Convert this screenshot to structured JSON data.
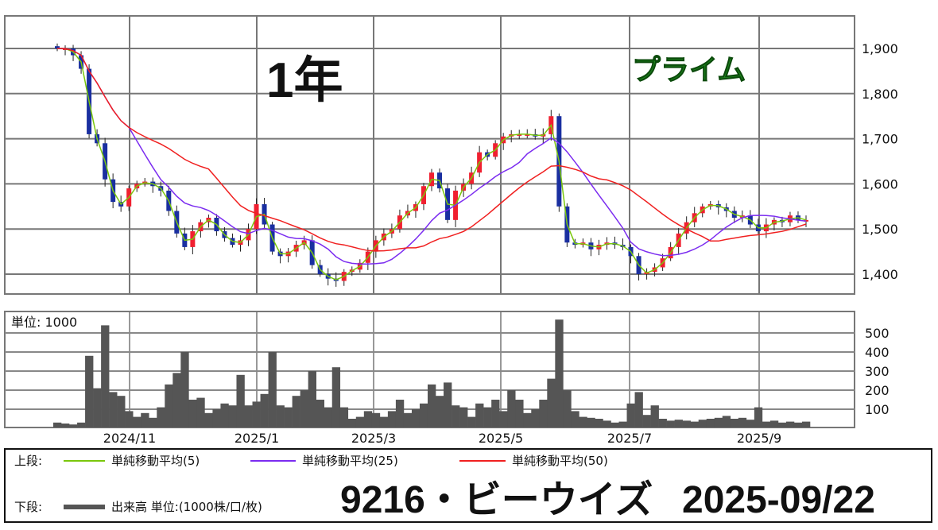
{
  "chart_data": [
    {
      "type": "candlestick",
      "title": "1年",
      "market_badge": "プライム",
      "ylim": [
        1370,
        1970
      ],
      "y_ticks": [
        1400,
        1500,
        1600,
        1700,
        1800,
        1900
      ],
      "y_tick_labels": [
        "1,400",
        "1,500",
        "1,600",
        "1,700",
        "1,800",
        "1,900"
      ],
      "x_tick_labels": [
        "2024/11",
        "2025/1",
        "2025/3",
        "2025/5",
        "2025/7",
        "2025/9"
      ],
      "grid": true,
      "close": [
        1900,
        1900,
        1885,
        1855,
        1710,
        1690,
        1610,
        1560,
        1550,
        1590,
        1600,
        1605,
        1595,
        1585,
        1540,
        1490,
        1460,
        1495,
        1515,
        1525,
        1495,
        1480,
        1465,
        1475,
        1500,
        1555,
        1510,
        1450,
        1440,
        1450,
        1465,
        1475,
        1420,
        1400,
        1390,
        1385,
        1405,
        1410,
        1425,
        1450,
        1475,
        1490,
        1500,
        1530,
        1540,
        1555,
        1595,
        1625,
        1590,
        1520,
        1585,
        1600,
        1625,
        1670,
        1660,
        1690,
        1705,
        1710,
        1710,
        1710,
        1705,
        1710,
        1750,
        1550,
        1470,
        1465,
        1470,
        1455,
        1465,
        1470,
        1465,
        1460,
        1440,
        1400,
        1405,
        1415,
        1435,
        1460,
        1490,
        1515,
        1535,
        1550,
        1555,
        1548,
        1540,
        1525,
        1530,
        1510,
        1495,
        1510,
        1520,
        1515,
        1530,
        1520,
        1520
      ],
      "series": [
        {
          "name": "単純移動平均(5)",
          "color": "#7ac70c"
        },
        {
          "name": "単純移動平均(25)",
          "color": "#7b2cf0"
        },
        {
          "name": "単純移動平均(50)",
          "color": "#f02020"
        }
      ],
      "up_color": "#f02030",
      "down_color": "#1a2fa0"
    },
    {
      "type": "bar",
      "unit_label": "単位: 1000",
      "ylim": [
        0,
        600
      ],
      "y_ticks": [
        100,
        200,
        300,
        400,
        500
      ],
      "y_tick_labels": [
        "100",
        "200",
        "300",
        "400",
        "500"
      ],
      "x_tick_labels": [
        "2024/11",
        "2025/1",
        "2025/3",
        "2025/5",
        "2025/7",
        "2025/9"
      ],
      "grid": true,
      "color": "#555555",
      "values": [
        30,
        25,
        20,
        30,
        380,
        210,
        540,
        190,
        170,
        90,
        60,
        80,
        55,
        110,
        230,
        290,
        400,
        150,
        160,
        80,
        100,
        130,
        120,
        280,
        120,
        140,
        180,
        400,
        120,
        110,
        170,
        200,
        300,
        150,
        110,
        320,
        110,
        50,
        60,
        90,
        80,
        60,
        90,
        150,
        80,
        100,
        130,
        230,
        170,
        240,
        120,
        110,
        60,
        130,
        110,
        150,
        90,
        200,
        150,
        80,
        100,
        150,
        260,
        570,
        200,
        90,
        60,
        55,
        50,
        40,
        30,
        35,
        130,
        190,
        70,
        120,
        50,
        40,
        45,
        40,
        35,
        45,
        50,
        55,
        65,
        50,
        55,
        45,
        110,
        35,
        40,
        30,
        35,
        30,
        35
      ]
    }
  ],
  "legend": {
    "upper_label": "上段:",
    "lower_label": "下段:",
    "ma5": "単純移動平均(5)",
    "ma25": "単純移動平均(25)",
    "ma50": "単純移動平均(50)",
    "volume": "出来高 単位:(1000株/口/枚)"
  },
  "footer": {
    "stock": "9216・ビーウイズ",
    "date": "2025-09/22"
  }
}
